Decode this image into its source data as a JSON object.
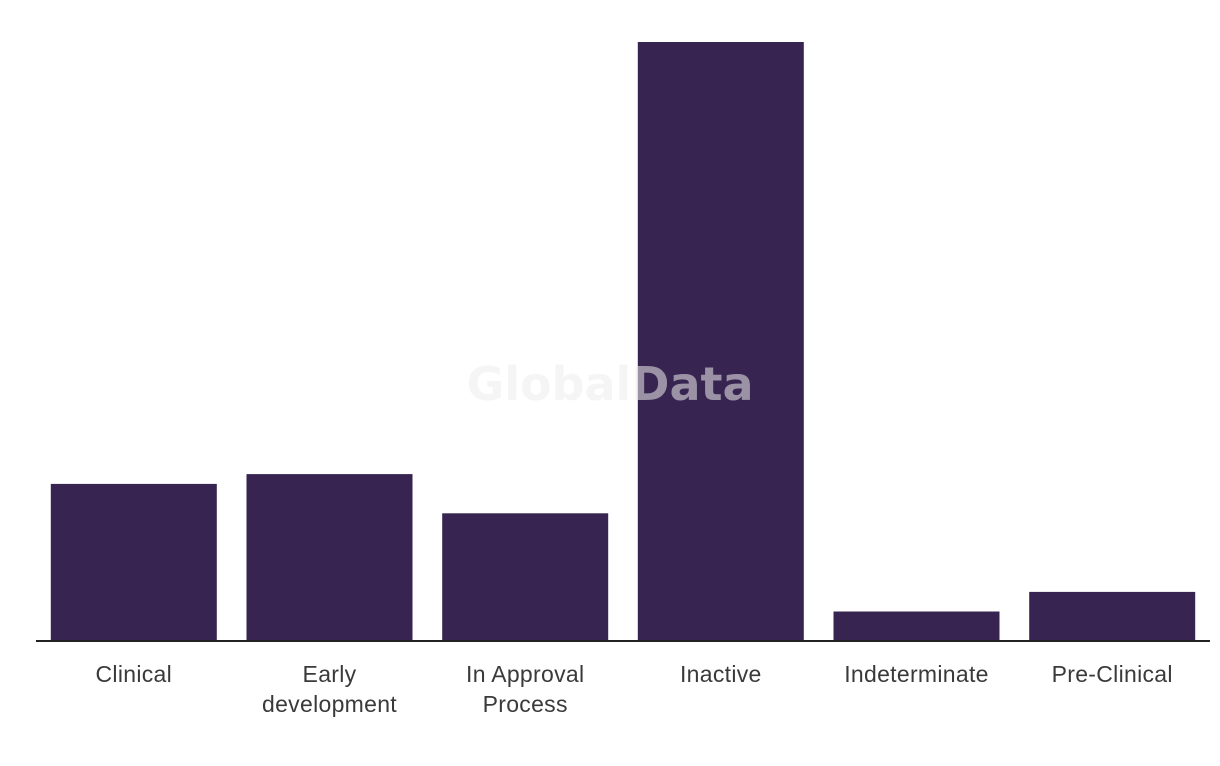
{
  "watermark": "GlobalData",
  "colors": {
    "bar": "#372451",
    "axis": "#222222",
    "label": "#3a3a3a"
  },
  "chart_data": {
    "type": "bar",
    "categories": [
      [
        "Clinical"
      ],
      [
        "Early",
        "development"
      ],
      [
        "In Approval",
        "Process"
      ],
      [
        "Inactive"
      ],
      [
        "Indeterminate"
      ],
      [
        "Pre-Clinical"
      ]
    ],
    "values": [
      16,
      17,
      13,
      61,
      3,
      5
    ],
    "ylim": [
      0,
      61
    ],
    "title": "",
    "xlabel": "",
    "ylabel": "",
    "grid": false,
    "legend": false
  }
}
